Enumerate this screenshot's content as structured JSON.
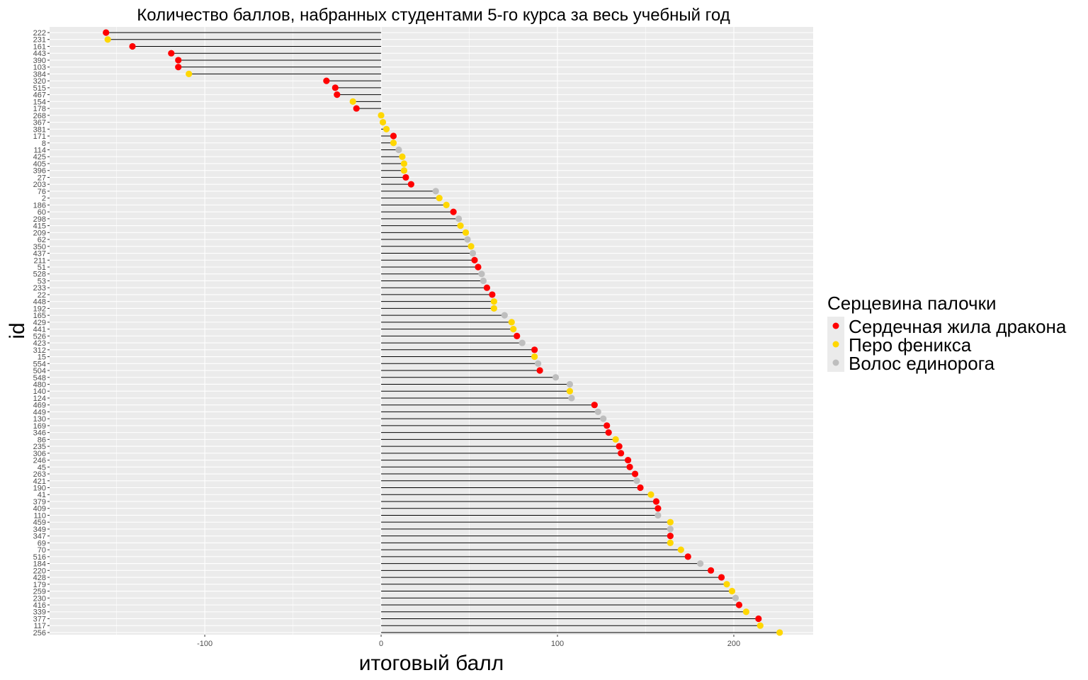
{
  "chart_data": {
    "type": "lollipop",
    "title": "Количество баллов, набранных студентами 5-го курса  за весь учебный год",
    "xlabel": "итоговый балл",
    "ylabel": "id",
    "xlim": [
      -188,
      245
    ],
    "x_ticks": [
      -100,
      0,
      100,
      200
    ],
    "x_tick_labels": [
      "-100",
      "0",
      "100",
      "200"
    ],
    "baseline": 0,
    "grid": true,
    "legend": {
      "title": "Серцевина палочки",
      "position": "right",
      "entries": [
        {
          "key": "dragon",
          "label": "Сердечная жила дракона",
          "color": "#ff0000"
        },
        {
          "key": "phoenix",
          "label": "Перо феникса",
          "color": "#ffd700"
        },
        {
          "key": "unicorn",
          "label": "Волос единорога",
          "color": "#bebebe"
        }
      ]
    },
    "points": [
      {
        "id": "222",
        "value": -156,
        "core": "dragon"
      },
      {
        "id": "231",
        "value": -155,
        "core": "phoenix"
      },
      {
        "id": "161",
        "value": -141,
        "core": "dragon"
      },
      {
        "id": "443",
        "value": -119,
        "core": "dragon"
      },
      {
        "id": "390",
        "value": -115,
        "core": "dragon"
      },
      {
        "id": "103",
        "value": -115,
        "core": "dragon"
      },
      {
        "id": "384",
        "value": -109,
        "core": "phoenix"
      },
      {
        "id": "320",
        "value": -31,
        "core": "dragon"
      },
      {
        "id": "515",
        "value": -26,
        "core": "dragon"
      },
      {
        "id": "467",
        "value": -25,
        "core": "dragon"
      },
      {
        "id": "154",
        "value": -16,
        "core": "phoenix"
      },
      {
        "id": "178",
        "value": -14,
        "core": "dragon"
      },
      {
        "id": "268",
        "value": 0,
        "core": "phoenix"
      },
      {
        "id": "367",
        "value": 1,
        "core": "phoenix"
      },
      {
        "id": "381",
        "value": 3,
        "core": "phoenix"
      },
      {
        "id": "171",
        "value": 7,
        "core": "dragon"
      },
      {
        "id": "8",
        "value": 7,
        "core": "phoenix"
      },
      {
        "id": "114",
        "value": 10,
        "core": "unicorn"
      },
      {
        "id": "425",
        "value": 12,
        "core": "phoenix"
      },
      {
        "id": "405",
        "value": 13,
        "core": "phoenix"
      },
      {
        "id": "396",
        "value": 13,
        "core": "phoenix"
      },
      {
        "id": "27",
        "value": 14,
        "core": "dragon"
      },
      {
        "id": "203",
        "value": 17,
        "core": "dragon"
      },
      {
        "id": "76",
        "value": 31,
        "core": "unicorn"
      },
      {
        "id": "2",
        "value": 33,
        "core": "phoenix"
      },
      {
        "id": "186",
        "value": 37,
        "core": "phoenix"
      },
      {
        "id": "60",
        "value": 41,
        "core": "dragon"
      },
      {
        "id": "298",
        "value": 44,
        "core": "unicorn"
      },
      {
        "id": "415",
        "value": 45,
        "core": "phoenix"
      },
      {
        "id": "209",
        "value": 48,
        "core": "phoenix"
      },
      {
        "id": "62",
        "value": 49,
        "core": "unicorn"
      },
      {
        "id": "350",
        "value": 51,
        "core": "phoenix"
      },
      {
        "id": "437",
        "value": 52,
        "core": "unicorn"
      },
      {
        "id": "211",
        "value": 53,
        "core": "dragon"
      },
      {
        "id": "51",
        "value": 55,
        "core": "dragon"
      },
      {
        "id": "528",
        "value": 57,
        "core": "unicorn"
      },
      {
        "id": "53",
        "value": 58,
        "core": "unicorn"
      },
      {
        "id": "233",
        "value": 60,
        "core": "dragon"
      },
      {
        "id": "22",
        "value": 63,
        "core": "dragon"
      },
      {
        "id": "448",
        "value": 64,
        "core": "phoenix"
      },
      {
        "id": "192",
        "value": 64,
        "core": "phoenix"
      },
      {
        "id": "165",
        "value": 70,
        "core": "unicorn"
      },
      {
        "id": "429",
        "value": 74,
        "core": "phoenix"
      },
      {
        "id": "441",
        "value": 75,
        "core": "phoenix"
      },
      {
        "id": "526",
        "value": 77,
        "core": "dragon"
      },
      {
        "id": "423",
        "value": 80,
        "core": "unicorn"
      },
      {
        "id": "312",
        "value": 87,
        "core": "dragon"
      },
      {
        "id": "15",
        "value": 87,
        "core": "phoenix"
      },
      {
        "id": "554",
        "value": 89,
        "core": "unicorn"
      },
      {
        "id": "504",
        "value": 90,
        "core": "dragon"
      },
      {
        "id": "548",
        "value": 99,
        "core": "unicorn"
      },
      {
        "id": "480",
        "value": 107,
        "core": "unicorn"
      },
      {
        "id": "140",
        "value": 107,
        "core": "phoenix"
      },
      {
        "id": "124",
        "value": 108,
        "core": "unicorn"
      },
      {
        "id": "469",
        "value": 121,
        "core": "dragon"
      },
      {
        "id": "449",
        "value": 123,
        "core": "unicorn"
      },
      {
        "id": "130",
        "value": 126,
        "core": "unicorn"
      },
      {
        "id": "169",
        "value": 128,
        "core": "dragon"
      },
      {
        "id": "346",
        "value": 129,
        "core": "dragon"
      },
      {
        "id": "86",
        "value": 133,
        "core": "phoenix"
      },
      {
        "id": "235",
        "value": 135,
        "core": "dragon"
      },
      {
        "id": "306",
        "value": 136,
        "core": "dragon"
      },
      {
        "id": "246",
        "value": 140,
        "core": "dragon"
      },
      {
        "id": "45",
        "value": 141,
        "core": "dragon"
      },
      {
        "id": "263",
        "value": 144,
        "core": "dragon"
      },
      {
        "id": "421",
        "value": 145,
        "core": "unicorn"
      },
      {
        "id": "190",
        "value": 147,
        "core": "dragon"
      },
      {
        "id": "41",
        "value": 153,
        "core": "phoenix"
      },
      {
        "id": "379",
        "value": 156,
        "core": "dragon"
      },
      {
        "id": "409",
        "value": 157,
        "core": "dragon"
      },
      {
        "id": "110",
        "value": 157,
        "core": "unicorn"
      },
      {
        "id": "459",
        "value": 164,
        "core": "phoenix"
      },
      {
        "id": "349",
        "value": 164,
        "core": "unicorn"
      },
      {
        "id": "347",
        "value": 164,
        "core": "dragon"
      },
      {
        "id": "69",
        "value": 164,
        "core": "phoenix"
      },
      {
        "id": "70",
        "value": 170,
        "core": "phoenix"
      },
      {
        "id": "516",
        "value": 174,
        "core": "dragon"
      },
      {
        "id": "184",
        "value": 181,
        "core": "unicorn"
      },
      {
        "id": "220",
        "value": 187,
        "core": "dragon"
      },
      {
        "id": "428",
        "value": 193,
        "core": "dragon"
      },
      {
        "id": "179",
        "value": 196,
        "core": "phoenix"
      },
      {
        "id": "259",
        "value": 199,
        "core": "phoenix"
      },
      {
        "id": "230",
        "value": 201,
        "core": "unicorn"
      },
      {
        "id": "416",
        "value": 203,
        "core": "dragon"
      },
      {
        "id": "339",
        "value": 207,
        "core": "phoenix"
      },
      {
        "id": "377",
        "value": 214,
        "core": "dragon"
      },
      {
        "id": "117",
        "value": 215,
        "core": "phoenix"
      },
      {
        "id": "256",
        "value": 226,
        "core": "phoenix"
      }
    ]
  }
}
